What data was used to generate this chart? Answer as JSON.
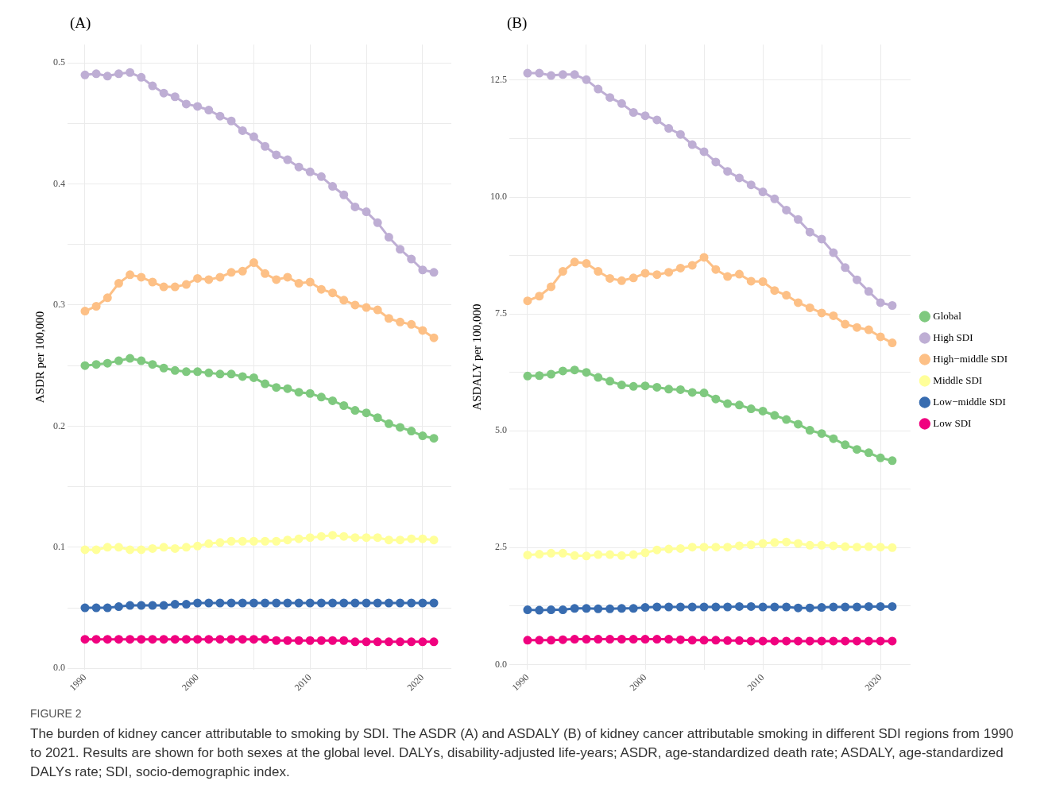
{
  "chart_data": [
    {
      "type": "line",
      "title": "(A)",
      "ylabel": "ASDR per 100,000",
      "x": [
        1990,
        1991,
        1992,
        1993,
        1994,
        1995,
        1996,
        1997,
        1998,
        1999,
        2000,
        2001,
        2002,
        2003,
        2004,
        2005,
        2006,
        2007,
        2008,
        2009,
        2010,
        2011,
        2012,
        2013,
        2014,
        2015,
        2016,
        2017,
        2018,
        2019,
        2020,
        2021
      ],
      "xlim": [
        1988.45,
        2022.55
      ],
      "xticks": [
        1990,
        {
          "value": 1995,
          "label": null
        },
        2000,
        {
          "value": 2005,
          "label": null
        },
        2010,
        {
          "value": 2015,
          "label": null
        },
        2020
      ],
      "ylim": [
        -0.001,
        0.515
      ],
      "yticks": [
        {
          "value": 0,
          "label": "0.0"
        },
        {
          "value": 0.05,
          "label": null
        },
        0.1,
        {
          "value": 0.15,
          "label": null
        },
        0.2,
        {
          "value": 0.25,
          "label": null
        },
        0.3,
        {
          "value": 0.35,
          "label": null
        },
        0.4,
        {
          "value": 0.45,
          "label": null
        },
        0.5
      ],
      "grid": true,
      "legend": false,
      "marker": "circle",
      "line_style": "solid",
      "series": [
        {
          "color": "#7fc97f",
          "values": [
            0.25,
            0.251,
            0.252,
            0.254,
            0.256,
            0.254,
            0.251,
            0.248,
            0.246,
            0.245,
            0.245,
            0.244,
            0.243,
            0.243,
            0.241,
            0.24,
            0.235,
            0.232,
            0.231,
            0.228,
            0.227,
            0.224,
            0.221,
            0.217,
            0.213,
            0.211,
            0.207,
            0.202,
            0.199,
            0.196,
            0.192,
            0.19
          ]
        },
        {
          "color": "#beaed4",
          "values": [
            0.49,
            0.491,
            0.489,
            0.491,
            0.492,
            0.488,
            0.481,
            0.475,
            0.472,
            0.466,
            0.464,
            0.461,
            0.456,
            0.452,
            0.444,
            0.439,
            0.431,
            0.424,
            0.42,
            0.414,
            0.41,
            0.406,
            0.398,
            0.391,
            0.381,
            0.377,
            0.368,
            0.356,
            0.346,
            0.338,
            0.329,
            0.327
          ]
        },
        {
          "color": "#fdc086",
          "values": [
            0.295,
            0.299,
            0.306,
            0.318,
            0.325,
            0.323,
            0.319,
            0.315,
            0.315,
            0.317,
            0.322,
            0.321,
            0.323,
            0.327,
            0.328,
            0.335,
            0.326,
            0.321,
            0.323,
            0.318,
            0.319,
            0.313,
            0.31,
            0.304,
            0.3,
            0.298,
            0.296,
            0.289,
            0.286,
            0.284,
            0.279,
            0.273
          ]
        },
        {
          "color": "#ffff99",
          "values": [
            0.098,
            0.098,
            0.1,
            0.1,
            0.098,
            0.098,
            0.099,
            0.1,
            0.099,
            0.1,
            0.101,
            0.103,
            0.104,
            0.105,
            0.105,
            0.105,
            0.105,
            0.105,
            0.106,
            0.107,
            0.108,
            0.109,
            0.11,
            0.109,
            0.108,
            0.108,
            0.108,
            0.106,
            0.106,
            0.107,
            0.107,
            0.106
          ]
        },
        {
          "color": "#386cb0",
          "values": [
            0.05,
            0.05,
            0.05,
            0.051,
            0.052,
            0.052,
            0.052,
            0.052,
            0.053,
            0.053,
            0.054,
            0.054,
            0.054,
            0.054,
            0.054,
            0.054,
            0.054,
            0.054,
            0.054,
            0.054,
            0.054,
            0.054,
            0.054,
            0.054,
            0.054,
            0.054,
            0.054,
            0.054,
            0.054,
            0.054,
            0.054,
            0.054
          ]
        },
        {
          "color": "#f0027f",
          "values": [
            0.024,
            0.024,
            0.024,
            0.024,
            0.024,
            0.024,
            0.024,
            0.024,
            0.024,
            0.024,
            0.024,
            0.024,
            0.024,
            0.024,
            0.024,
            0.024,
            0.024,
            0.023,
            0.023,
            0.023,
            0.023,
            0.023,
            0.023,
            0.023,
            0.022,
            0.022,
            0.022,
            0.022,
            0.022,
            0.022,
            0.022,
            0.022
          ]
        }
      ],
      "annotations": [
        "FIGURE 2",
        "The burden of kidney cancer attributable to smoking by SDI. The ASDR (A) and ASDALY (B) of kidney cancer attributable smoking in different SDI regions from 1990 to 2021. Results are shown for both sexes at the global level. DALYs, disability-adjusted life-years; ASDR, age-standardized death rate; ASDALY, age-standardized DALYs rate; SDI, socio-demographic index."
      ]
    },
    {
      "type": "line",
      "title": "(B)",
      "ylabel": "ASDALY per 100,000",
      "x": [
        1990,
        1991,
        1992,
        1993,
        1994,
        1995,
        1996,
        1997,
        1998,
        1999,
        2000,
        2001,
        2002,
        2003,
        2004,
        2005,
        2006,
        2007,
        2008,
        2009,
        2010,
        2011,
        2012,
        2013,
        2014,
        2015,
        2016,
        2017,
        2018,
        2019,
        2020,
        2021
      ],
      "xlim": [
        1988.45,
        2022.55
      ],
      "xticks": [
        1990,
        {
          "value": 1995,
          "label": null
        },
        2000,
        {
          "value": 2005,
          "label": null
        },
        2010,
        {
          "value": 2015,
          "label": null
        },
        2020
      ],
      "ylim": [
        -0.11,
        13.26
      ],
      "yticks": [
        {
          "value": 0,
          "label": "0.0"
        },
        {
          "value": 1.25,
          "label": null
        },
        2.5,
        {
          "value": 3.75,
          "label": null
        },
        {
          "value": 5,
          "label": "5.0"
        },
        {
          "value": 6.25,
          "label": null
        },
        7.5,
        {
          "value": 8.75,
          "label": null
        },
        {
          "value": 10,
          "label": "10.0"
        },
        {
          "value": 11.25,
          "label": null
        },
        12.5
      ],
      "grid": true,
      "legend": "right",
      "marker": "circle",
      "line_style": "solid",
      "series": [
        {
          "name": "Global",
          "color": "#7fc97f",
          "values": [
            6.17,
            6.18,
            6.21,
            6.28,
            6.3,
            6.25,
            6.14,
            6.06,
            5.98,
            5.95,
            5.96,
            5.93,
            5.89,
            5.88,
            5.82,
            5.81,
            5.68,
            5.58,
            5.55,
            5.47,
            5.42,
            5.33,
            5.24,
            5.14,
            5.01,
            4.94,
            4.83,
            4.7,
            4.6,
            4.53,
            4.42,
            4.36
          ]
        },
        {
          "name": "High SDI",
          "color": "#beaed4",
          "values": [
            12.65,
            12.65,
            12.6,
            12.62,
            12.62,
            12.51,
            12.31,
            12.13,
            12.0,
            11.81,
            11.74,
            11.65,
            11.47,
            11.34,
            11.12,
            10.97,
            10.75,
            10.55,
            10.41,
            10.26,
            10.11,
            9.96,
            9.72,
            9.52,
            9.25,
            9.1,
            8.81,
            8.49,
            8.23,
            7.98,
            7.74,
            7.68
          ]
        },
        {
          "name": "High−middle SDI",
          "color": "#fdc086",
          "values": [
            7.78,
            7.88,
            8.08,
            8.41,
            8.61,
            8.58,
            8.41,
            8.26,
            8.21,
            8.27,
            8.37,
            8.34,
            8.39,
            8.48,
            8.54,
            8.71,
            8.45,
            8.3,
            8.35,
            8.2,
            8.19,
            8.0,
            7.9,
            7.74,
            7.63,
            7.52,
            7.46,
            7.28,
            7.21,
            7.16,
            7.01,
            6.88
          ]
        },
        {
          "name": "Middle SDI",
          "color": "#ffff99",
          "values": [
            2.34,
            2.36,
            2.38,
            2.38,
            2.33,
            2.32,
            2.35,
            2.35,
            2.33,
            2.35,
            2.39,
            2.45,
            2.47,
            2.48,
            2.51,
            2.51,
            2.51,
            2.51,
            2.54,
            2.56,
            2.59,
            2.61,
            2.62,
            2.59,
            2.55,
            2.55,
            2.54,
            2.52,
            2.51,
            2.52,
            2.51,
            2.5
          ]
        },
        {
          "name": "Low−middle SDI",
          "color": "#386cb0",
          "values": [
            1.17,
            1.16,
            1.17,
            1.17,
            1.2,
            1.2,
            1.19,
            1.19,
            1.2,
            1.2,
            1.22,
            1.23,
            1.23,
            1.23,
            1.23,
            1.23,
            1.23,
            1.23,
            1.24,
            1.24,
            1.23,
            1.23,
            1.23,
            1.21,
            1.21,
            1.22,
            1.23,
            1.23,
            1.23,
            1.24,
            1.24,
            1.24
          ]
        },
        {
          "name": "Low SDI",
          "color": "#f0027f",
          "values": [
            0.52,
            0.52,
            0.52,
            0.53,
            0.54,
            0.54,
            0.54,
            0.54,
            0.54,
            0.54,
            0.54,
            0.54,
            0.54,
            0.53,
            0.52,
            0.52,
            0.52,
            0.51,
            0.51,
            0.5,
            0.5,
            0.5,
            0.5,
            0.5,
            0.5,
            0.5,
            0.5,
            0.5,
            0.5,
            0.5,
            0.5,
            0.5
          ]
        }
      ]
    }
  ]
}
